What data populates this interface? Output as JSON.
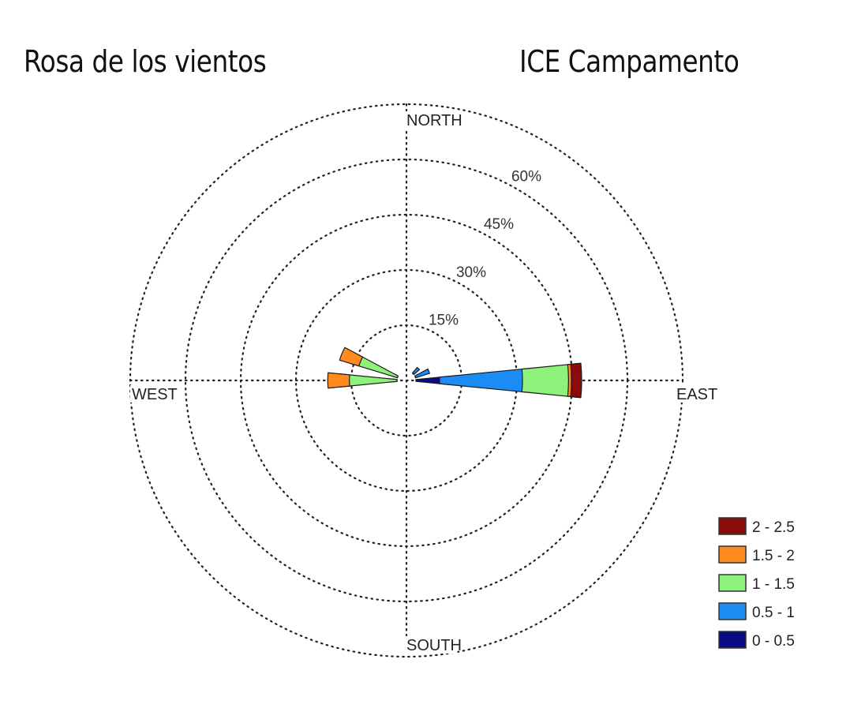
{
  "titles": {
    "left": "Rosa de los vientos",
    "right": "ICE Campamento"
  },
  "chart_data": {
    "type": "wind-rose",
    "title": "Rosa de los vientos",
    "subtitle": "ICE Campamento",
    "directions": [
      {
        "label": "NORTH",
        "angle": 0
      },
      {
        "label": "EAST",
        "angle": 90
      },
      {
        "label": "SOUTH",
        "angle": 180
      },
      {
        "label": "WEST",
        "angle": 270
      }
    ],
    "rings": [
      {
        "value": 15,
        "label": "15%"
      },
      {
        "value": 30,
        "label": "30%"
      },
      {
        "value": 45,
        "label": "45%"
      },
      {
        "value": 60,
        "label": "60%"
      }
    ],
    "r_max_percent": 75,
    "grid": "dotted",
    "legend": {
      "placement": "bottom-right",
      "items": [
        {
          "label": "2 - 2.5",
          "color": "#8b0a0a"
        },
        {
          "label": "1.5 - 2",
          "color": "#ff8a1e"
        },
        {
          "label": "1 - 1.5",
          "color": "#8cf27a"
        },
        {
          "label": "0.5 - 1",
          "color": "#1c8cf5"
        },
        {
          "label": "0 - 0.5",
          "color": "#0a0a84"
        }
      ]
    },
    "bins": [
      "0 - 0.5",
      "0.5 - 1",
      "1 - 1.5",
      "1.5 - 2",
      "2 - 2.5"
    ],
    "sectors": [
      {
        "direction": 90,
        "cumulative": [
          9,
          31.5,
          44,
          44.8,
          45
        ]
      },
      {
        "direction": 270,
        "cumulative": [
          1,
          2,
          15.5,
          18.8,
          18.8
        ]
      },
      {
        "direction": 292.5,
        "cumulative": [
          0.5,
          1.2,
          13.5,
          16.4,
          16.4
        ]
      },
      {
        "direction": 67.5,
        "cumulative": [
          1,
          4,
          4,
          4,
          4
        ]
      },
      {
        "direction": 45,
        "cumulative": [
          0.6,
          2,
          2,
          2,
          2
        ]
      }
    ]
  }
}
